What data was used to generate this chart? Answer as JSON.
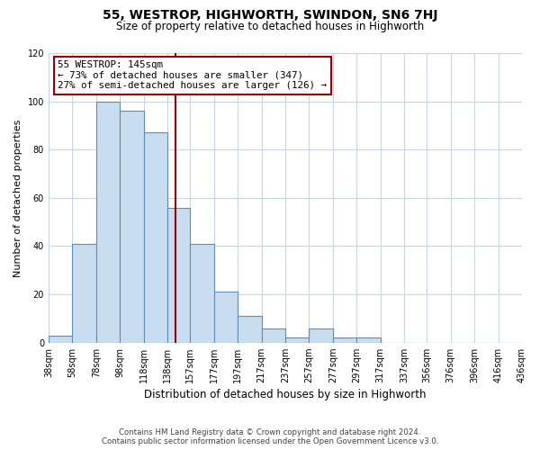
{
  "title": "55, WESTROP, HIGHWORTH, SWINDON, SN6 7HJ",
  "subtitle": "Size of property relative to detached houses in Highworth",
  "xlabel": "Distribution of detached houses by size in Highworth",
  "ylabel": "Number of detached properties",
  "bin_edges": [
    38,
    58,
    78,
    98,
    118,
    138,
    157,
    177,
    197,
    217,
    237,
    257,
    277,
    297,
    317,
    337,
    356,
    376,
    396,
    416,
    436
  ],
  "bin_heights": [
    3,
    41,
    100,
    96,
    87,
    56,
    41,
    21,
    11,
    6,
    2,
    6,
    2,
    2,
    0,
    0,
    0,
    0,
    0,
    0
  ],
  "bar_facecolor": "#c9ddf0",
  "bar_edgecolor": "#5b8db8",
  "vline_x": 145,
  "vline_color": "#990000",
  "annotation_box_text": "55 WESTROP: 145sqm\n← 73% of detached houses are smaller (347)\n27% of semi-detached houses are larger (126) →",
  "annotation_box_edgecolor": "#990000",
  "annotation_box_facecolor": "#ffffff",
  "ylim": [
    0,
    120
  ],
  "yticks": [
    0,
    20,
    40,
    60,
    80,
    100,
    120
  ],
  "background_color": "#ffffff",
  "grid_color": "#c8d4e4",
  "footer_line1": "Contains HM Land Registry data © Crown copyright and database right 2024.",
  "footer_line2": "Contains public sector information licensed under the Open Government Licence v3.0.",
  "tick_labels": [
    "38sqm",
    "58sqm",
    "78sqm",
    "98sqm",
    "118sqm",
    "138sqm",
    "157sqm",
    "177sqm",
    "197sqm",
    "217sqm",
    "237sqm",
    "257sqm",
    "277sqm",
    "297sqm",
    "317sqm",
    "337sqm",
    "356sqm",
    "376sqm",
    "396sqm",
    "416sqm",
    "436sqm"
  ]
}
